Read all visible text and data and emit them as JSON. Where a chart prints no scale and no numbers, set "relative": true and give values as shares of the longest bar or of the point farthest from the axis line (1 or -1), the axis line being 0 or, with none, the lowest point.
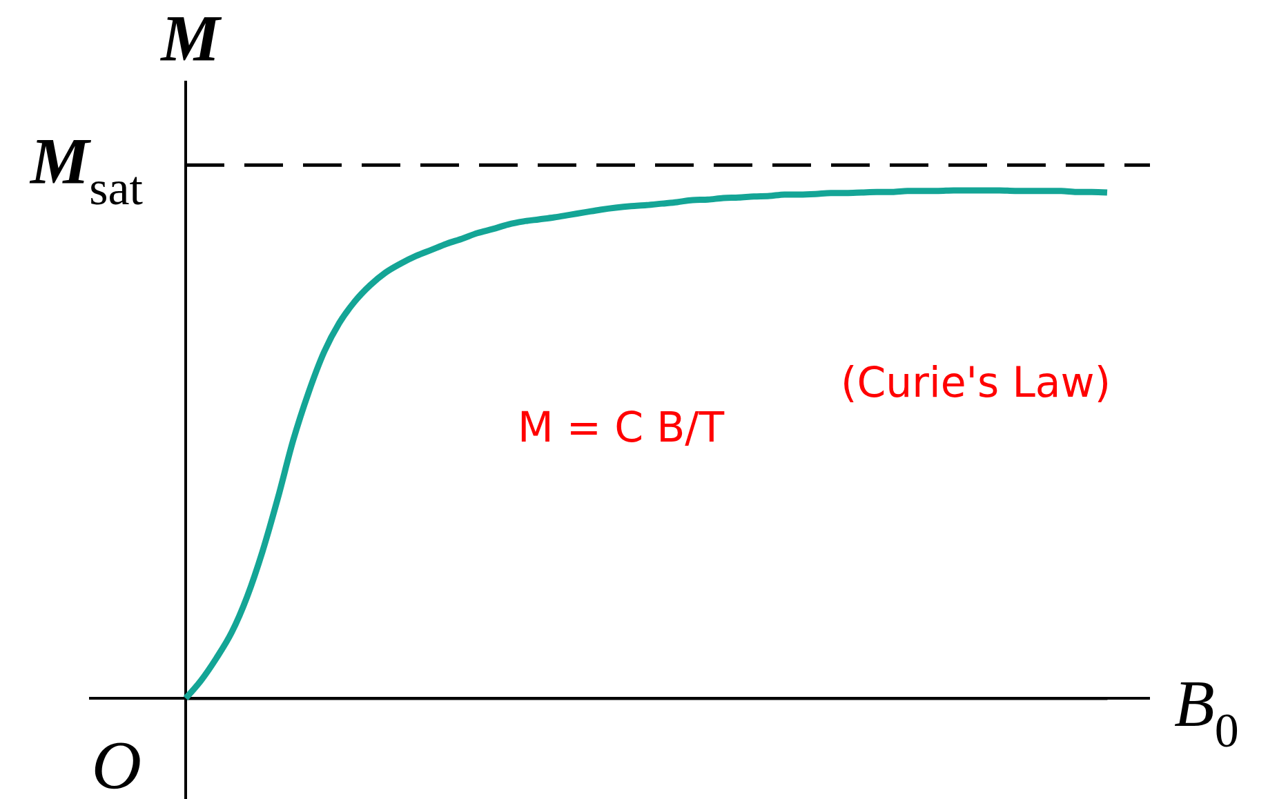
{
  "chart_data": {
    "type": "line",
    "relative": true,
    "xlabel": "B$_{0}$",
    "ylabel": "M",
    "categories": [
      null,
      null,
      null,
      null,
      null,
      null,
      null,
      null,
      null,
      null,
      null,
      null,
      null,
      null,
      null,
      null,
      null,
      null,
      null,
      null,
      null,
      null,
      null,
      null,
      null,
      null,
      null,
      null,
      null,
      null,
      null,
      null,
      null,
      null,
      null,
      null,
      null,
      null,
      null,
      null,
      null,
      null,
      null,
      null,
      null,
      null,
      null,
      null,
      null,
      null,
      null,
      null,
      null,
      null,
      null,
      null,
      null,
      null,
      null,
      null,
      null
    ],
    "values": [
      0,
      0.035,
      0.079,
      0.13,
      0.2,
      0.289,
      0.394,
      0.508,
      0.602,
      0.681,
      0.739,
      0.781,
      0.813,
      0.838,
      0.856,
      0.871,
      0.883,
      0.895,
      0.905,
      0.916,
      0.924,
      0.933,
      0.939,
      0.943,
      0.947,
      0.952,
      0.957,
      0.962,
      0.966,
      0.969,
      0.971,
      0.974,
      0.977,
      0.981,
      0.982,
      0.985,
      0.986,
      0.988,
      0.989,
      0.992,
      0.992,
      0.993,
      0.995,
      0.995,
      0.996,
      0.997,
      0.997,
      0.999,
      0.999,
      0.999,
      1,
      1,
      1,
      1,
      0.999,
      0.999,
      0.999,
      0.999,
      0.997,
      0.997,
      0.996
    ],
    "color": "#14a596",
    "ref_lines": [
      {
        "axis": "y",
        "value": 1.05,
        "label": "M$_{sat}$",
        "line_style": "dashed",
        "color": "#000000"
      }
    ],
    "annotations": [
      "O",
      "M = C B/T",
      "(Curie's Law)"
    ]
  }
}
